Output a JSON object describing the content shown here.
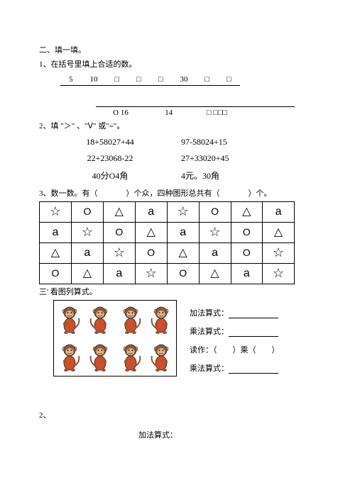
{
  "section_header": "二、填一填。",
  "q1": {
    "prompt": "1、在括号里填上合适的数。",
    "row1": [
      "5",
      "10",
      "□",
      "□",
      "□",
      "30",
      "□",
      "□"
    ],
    "row2_a": "O 16",
    "row2_b": "14",
    "row2_c": "□ □□□"
  },
  "q2": {
    "prompt": "2、填 \"＞\" 、\"Ⅴ\" 或\"=\"。",
    "rows": [
      {
        "left": "18+58027+44",
        "right": "97-58024+15"
      },
      {
        "left": "22+23068-22",
        "right": "27+33020+45"
      },
      {
        "left": "40分O4角",
        "right": "4元。30角"
      }
    ]
  },
  "q3": {
    "prompt_a": "3、数一数。有（",
    "prompt_b": "）个众，四种图形总共有（",
    "prompt_c": "）个。",
    "grid": [
      [
        "star",
        "circ",
        "tri",
        "a",
        "star",
        "circ",
        "tri",
        "a"
      ],
      [
        "a",
        "star",
        "circ",
        "tri",
        "a",
        "star",
        "circ",
        "tri"
      ],
      [
        "tri",
        "a",
        "star",
        "circ",
        "tri",
        "a",
        "circ",
        "star"
      ],
      [
        "circ",
        "tri",
        "a",
        "star",
        "circ",
        "tri",
        "a",
        "star"
      ]
    ]
  },
  "q4": {
    "title": "三' 看图列算式。",
    "labels": {
      "add_eq": "加法算式：",
      "mul_eq": "乘法算式：",
      "read_as": "读作：（　　）乘（　　）",
      "mul_eq2": "乘法算式：",
      "sub2": "2、",
      "add_eq2": "加法算式："
    }
  },
  "colors": {
    "monkey_fur": "#8a5a3a",
    "monkey_face": "#d9b48f",
    "monkey_belly": "#c94f2f",
    "monkey_line": "#3a2416"
  }
}
